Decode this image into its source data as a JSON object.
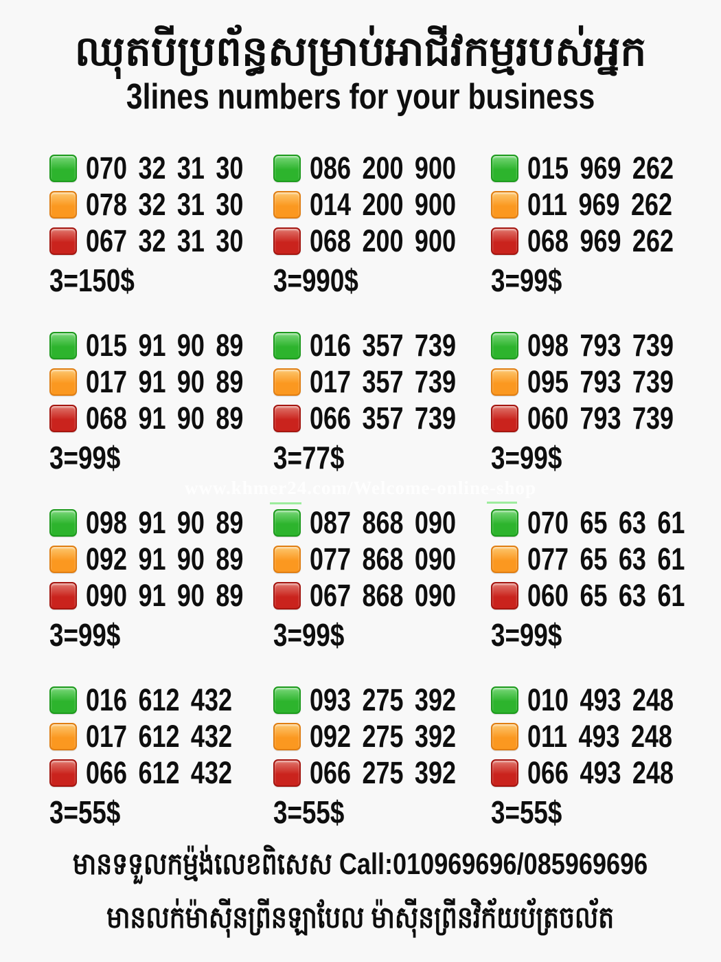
{
  "header": {
    "title_khmer": "ឈុតបីប្រព័ន្ធសម្រាប់អាជីវកម្មរបស់អ្នក",
    "title_english": "3lines numbers for your business"
  },
  "watermark": "www.khmer24.com/Welcome-online-shop",
  "colors": {
    "green": {
      "main": "#2db42d",
      "light": "#79d779",
      "border": "#1c9a1c"
    },
    "orange": {
      "main": "#fb9820",
      "light": "#fdc76f",
      "border": "#e07e12"
    },
    "red": {
      "main": "#ca231d",
      "light": "#e0776d",
      "border": "#a4150f"
    }
  },
  "blocks": [
    {
      "lines": [
        {
          "color": "green",
          "number": "070 32 31 30"
        },
        {
          "color": "orange",
          "number": "078 32 31 30"
        },
        {
          "color": "red",
          "number": "067 32 31 30"
        }
      ],
      "price": "3=150$"
    },
    {
      "lines": [
        {
          "color": "green",
          "number": "086 200 900"
        },
        {
          "color": "orange",
          "number": "014 200 900"
        },
        {
          "color": "red",
          "number": "068 200 900"
        }
      ],
      "price": "3=990$"
    },
    {
      "lines": [
        {
          "color": "green",
          "number": "015 969 262"
        },
        {
          "color": "orange",
          "number": "011 969 262"
        },
        {
          "color": "red",
          "number": "068 969 262"
        }
      ],
      "price": "3=99$"
    },
    {
      "lines": [
        {
          "color": "green",
          "number": "015 91 90 89"
        },
        {
          "color": "orange",
          "number": "017 91 90 89"
        },
        {
          "color": "red",
          "number": "068 91 90 89"
        }
      ],
      "price": "3=99$"
    },
    {
      "lines": [
        {
          "color": "green",
          "number": "016 357 739"
        },
        {
          "color": "orange",
          "number": "017 357 739"
        },
        {
          "color": "red",
          "number": "066 357 739"
        }
      ],
      "price": "3=77$"
    },
    {
      "lines": [
        {
          "color": "green",
          "number": "098 793 739"
        },
        {
          "color": "orange",
          "number": "095 793 739"
        },
        {
          "color": "red",
          "number": "060 793 739"
        }
      ],
      "price": "3=99$"
    },
    {
      "lines": [
        {
          "color": "green",
          "number": "098 91 90 89"
        },
        {
          "color": "orange",
          "number": "092 91 90 89"
        },
        {
          "color": "red",
          "number": "090 91 90 89"
        }
      ],
      "price": "3=99$"
    },
    {
      "lines": [
        {
          "color": "green",
          "number": "087 868 090"
        },
        {
          "color": "orange",
          "number": "077 868 090"
        },
        {
          "color": "red",
          "number": "067 868 090"
        }
      ],
      "price": "3=99$"
    },
    {
      "lines": [
        {
          "color": "green",
          "number": "070 65 63 61"
        },
        {
          "color": "orange",
          "number": "077 65 63 61"
        },
        {
          "color": "red",
          "number": "060 65 63 61"
        }
      ],
      "price": "3=99$"
    },
    {
      "lines": [
        {
          "color": "green",
          "number": "016 612 432"
        },
        {
          "color": "orange",
          "number": "017 612 432"
        },
        {
          "color": "red",
          "number": "066 612 432"
        }
      ],
      "price": "3=55$"
    },
    {
      "lines": [
        {
          "color": "green",
          "number": "093 275 392"
        },
        {
          "color": "orange",
          "number": "092 275 392"
        },
        {
          "color": "red",
          "number": "066 275 392"
        }
      ],
      "price": "3=55$"
    },
    {
      "lines": [
        {
          "color": "green",
          "number": "010 493 248"
        },
        {
          "color": "orange",
          "number": "011 493 248"
        },
        {
          "color": "red",
          "number": "066 493 248"
        }
      ],
      "price": "3=55$"
    }
  ],
  "footer": {
    "line1_khmer": "មានទទួលកម្ម៉ង់លេខពិសេស",
    "line1_call": "Call:010969696/085969696",
    "line2": "មានលក់ម៉ាស៊ីនព្រីនឡាបែល ម៉ាស៊ីនព្រីនវិក័យប័ត្រចល័ត"
  }
}
